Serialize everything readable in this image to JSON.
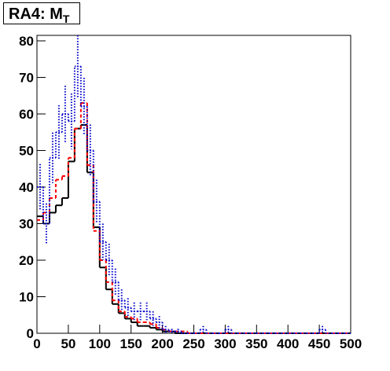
{
  "chart_data": {
    "type": "histogram",
    "title": "RA4: M",
    "title_subscript": "T",
    "bins": [
      0,
      10,
      20,
      30,
      40,
      50,
      60,
      70,
      80,
      90,
      100,
      110,
      120,
      130,
      140,
      150,
      160,
      170,
      180,
      190,
      200,
      210,
      220,
      230,
      240,
      250,
      260,
      270,
      280,
      290,
      300,
      310,
      320,
      330,
      340,
      350,
      360,
      370,
      380,
      390,
      400,
      410,
      420,
      430,
      440,
      450,
      460,
      470,
      480,
      490,
      500
    ],
    "series": [
      {
        "color": "#000000",
        "style": "solid",
        "values": [
          32,
          30,
          33,
          35,
          37,
          47,
          56,
          57,
          44,
          29,
          18,
          12,
          8,
          5.5,
          4,
          3,
          2,
          2,
          1.5,
          1,
          0.5,
          0.5,
          0,
          0,
          0,
          0,
          0,
          0,
          0,
          0,
          0,
          0,
          0,
          0,
          0,
          0,
          0,
          0,
          0,
          0,
          0,
          0,
          0,
          0,
          0,
          0,
          0,
          0,
          0,
          0
        ]
      },
      {
        "color": "#ff0000",
        "style": "dashed",
        "values": [
          31,
          33,
          37,
          42,
          43,
          48,
          56,
          63,
          46,
          28,
          20,
          14,
          9,
          6,
          4.5,
          4,
          3,
          3,
          2.5,
          1.5,
          1,
          0.5,
          0.5,
          0.5,
          0,
          0,
          0,
          0,
          0,
          0,
          0,
          0,
          0,
          0,
          0,
          0,
          0,
          0,
          0,
          0,
          0,
          0,
          0,
          0,
          0,
          0,
          0,
          0,
          0,
          0
        ]
      },
      {
        "color": "#0000cc",
        "style": "dotted",
        "values": [
          40,
          30,
          48,
          55,
          60,
          58,
          73,
          62,
          50,
          36,
          25,
          20,
          14,
          9,
          7,
          6,
          6,
          6,
          4,
          3,
          1,
          0.5,
          0.5,
          0,
          0,
          0,
          1,
          0,
          0,
          0,
          1,
          0,
          0,
          0,
          0,
          0,
          0,
          0,
          0,
          0,
          0,
          0,
          0,
          0,
          0,
          1,
          0,
          0,
          0,
          0
        ],
        "errors": [
          6.3,
          5.5,
          6.9,
          7.4,
          7.7,
          7.6,
          8.5,
          7.9,
          7.1,
          6,
          5,
          4.5,
          3.7,
          3,
          2.6,
          2.4,
          2.4,
          2.4,
          2,
          1.7,
          1,
          0.7,
          0.7,
          0,
          0,
          0,
          1,
          0,
          0,
          0,
          1,
          0,
          0,
          0,
          0,
          0,
          0,
          0,
          0,
          0,
          0,
          0,
          0,
          0,
          0,
          1,
          0,
          0,
          0,
          0
        ]
      }
    ],
    "xlim": [
      0,
      500
    ],
    "ylim": [
      0,
      81.5
    ],
    "xticks": [
      0,
      50,
      100,
      150,
      200,
      250,
      300,
      350,
      400,
      450,
      500
    ],
    "yticks": [
      0,
      10,
      20,
      30,
      40,
      50,
      60,
      70,
      80
    ]
  }
}
